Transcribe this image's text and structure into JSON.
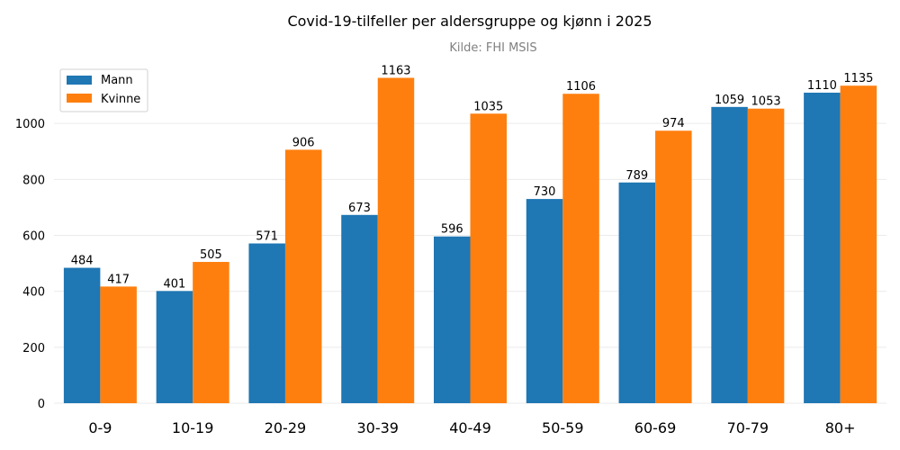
{
  "chart_data": {
    "type": "bar",
    "title": "Covid-19-tilfeller per aldersgruppe og kjønn i 2025",
    "subtitle": "Kilde: FHI MSIS",
    "xlabel": "",
    "ylabel": "",
    "categories": [
      "0-9",
      "10-19",
      "20-29",
      "30-39",
      "40-49",
      "50-59",
      "60-69",
      "70-79",
      "80+"
    ],
    "series": [
      {
        "name": "Mann",
        "color": "#1f77b4",
        "values": [
          484,
          401,
          571,
          673,
          596,
          730,
          789,
          1059,
          1110
        ]
      },
      {
        "name": "Kvinne",
        "color": "#ff7f0e",
        "values": [
          417,
          505,
          906,
          1163,
          1035,
          1106,
          974,
          1053,
          1135
        ]
      }
    ],
    "ylim": [
      0,
      1200
    ],
    "yticks": [
      0,
      200,
      400,
      600,
      800,
      1000
    ],
    "grid": true,
    "legend_position": "top-left",
    "data_labels": true
  }
}
